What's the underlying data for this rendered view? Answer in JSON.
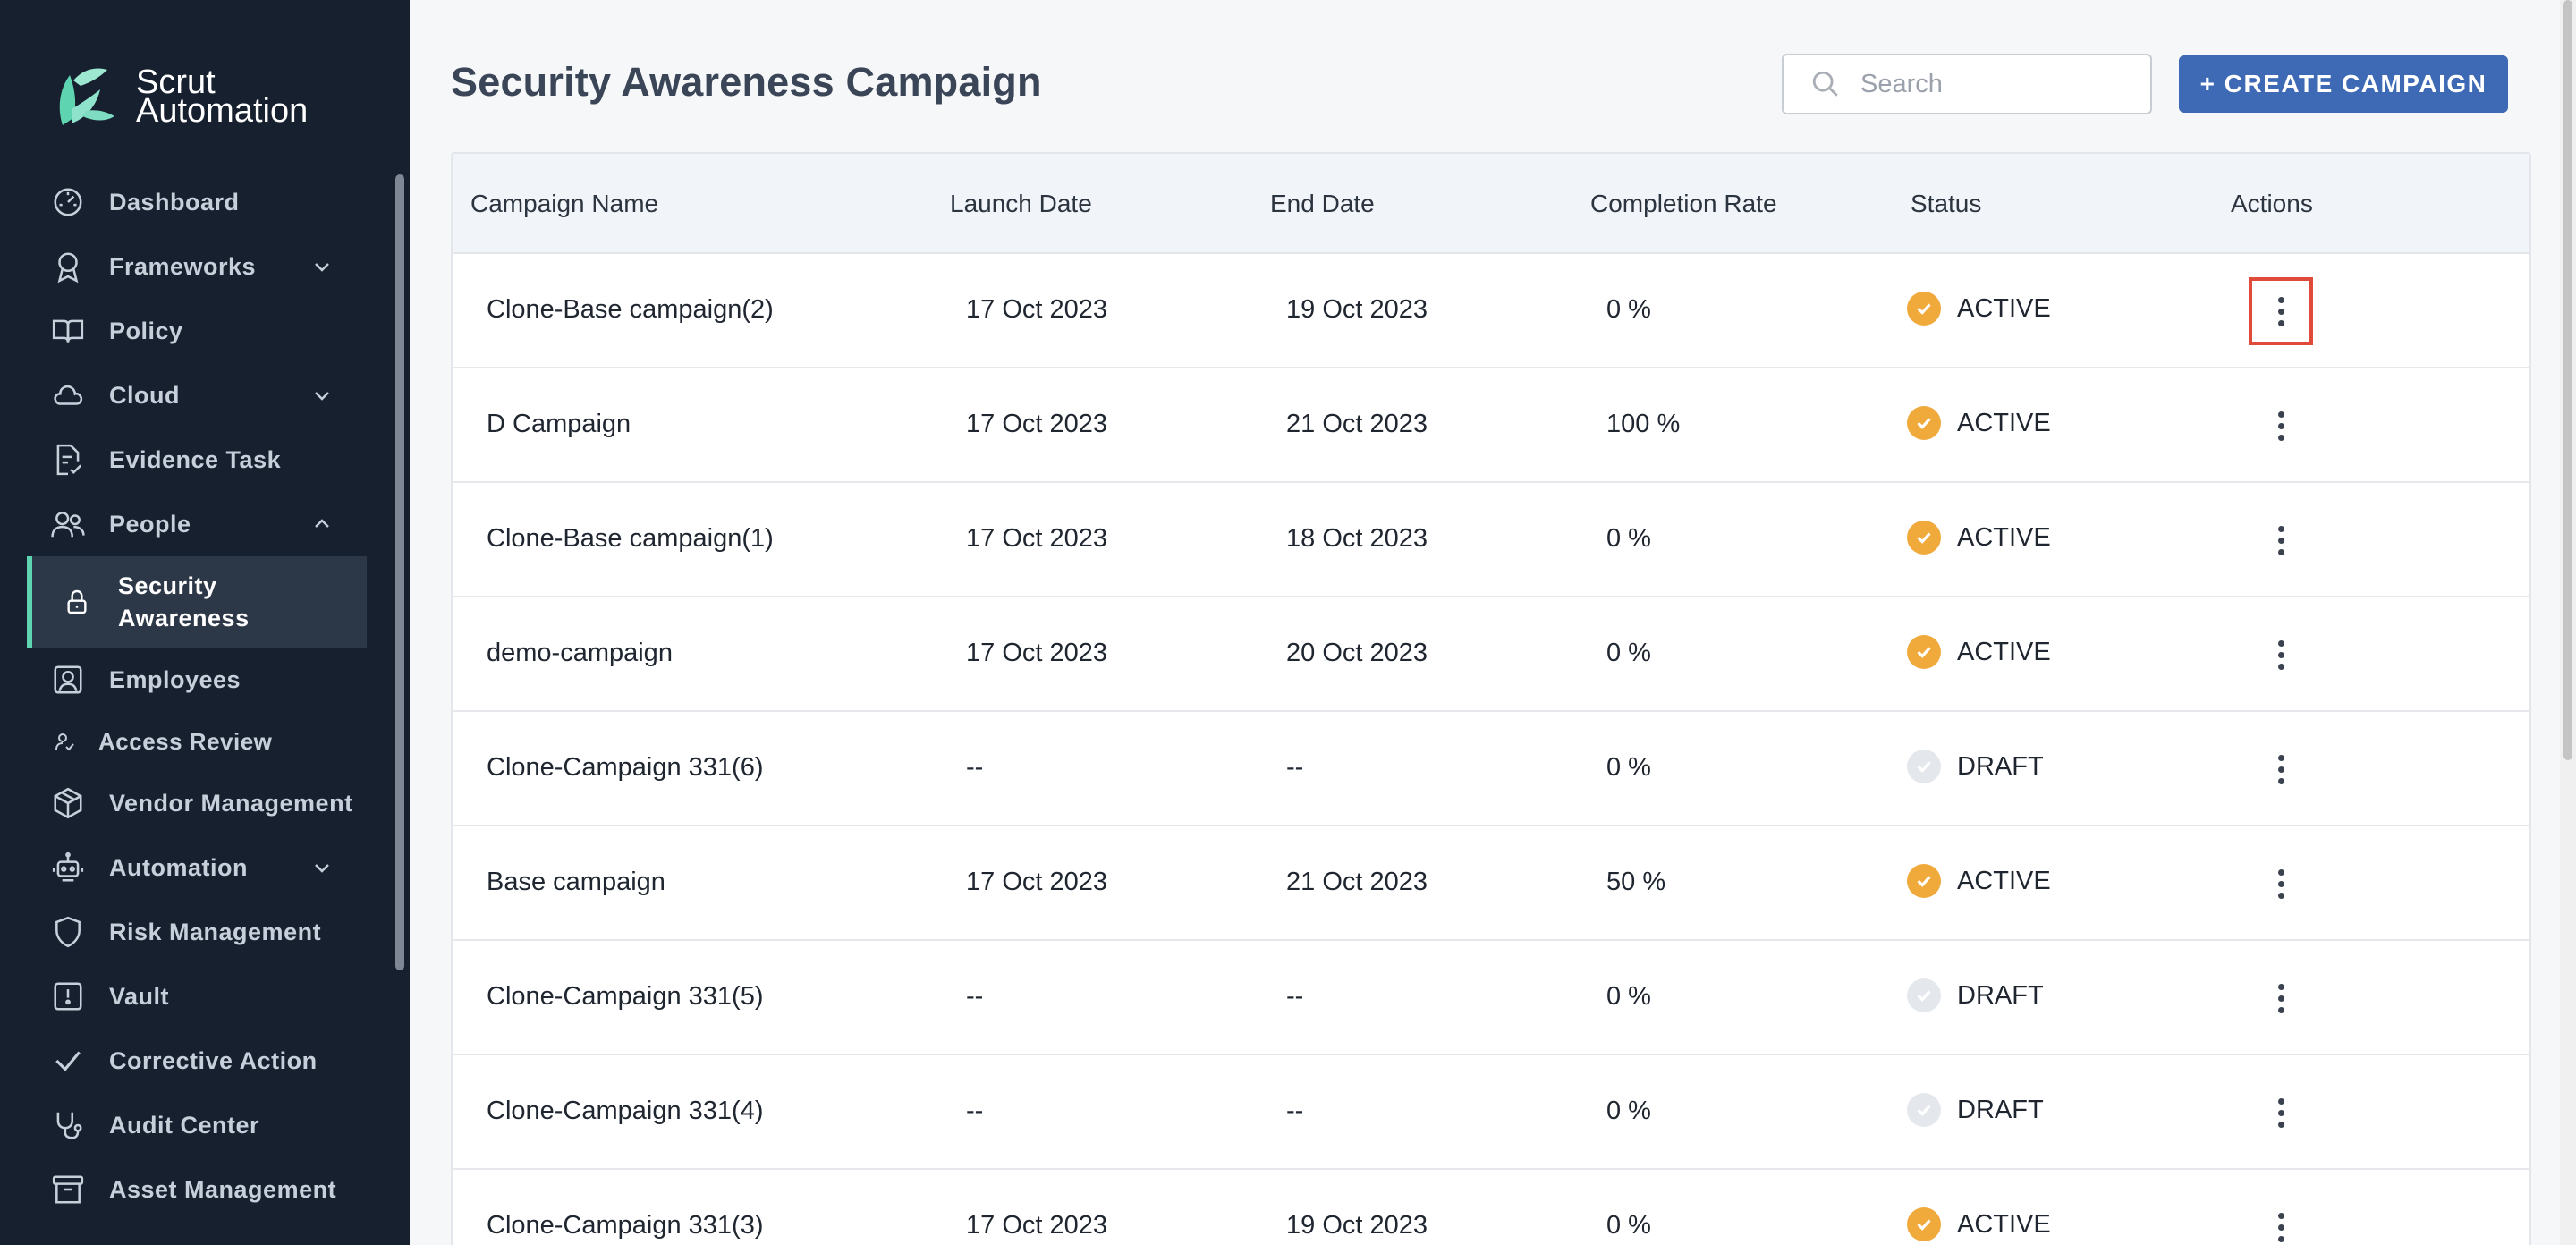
{
  "app": {
    "logo_line1": "Scrut",
    "logo_line2": "Automation"
  },
  "sidebar": {
    "items": [
      {
        "label": "Dashboard",
        "icon": "dashboard-icon"
      },
      {
        "label": "Frameworks",
        "icon": "award-icon",
        "expandable": "chevron-down"
      },
      {
        "label": "Policy",
        "icon": "book-icon"
      },
      {
        "label": "Cloud",
        "icon": "cloud-icon",
        "expandable": "chevron-down"
      },
      {
        "label": "Evidence Task",
        "icon": "document-check-icon"
      },
      {
        "label": "People",
        "icon": "people-icon",
        "expandable": "chevron-up"
      },
      {
        "label": "Security Awareness",
        "icon": "lock-icon",
        "active": true
      },
      {
        "label": "Employees",
        "icon": "employee-icon"
      },
      {
        "label": "Access Review",
        "icon": "access-review-icon"
      },
      {
        "label": "Vendor Management",
        "icon": "box-icon"
      },
      {
        "label": "Automation",
        "icon": "robot-icon",
        "expandable": "chevron-down"
      },
      {
        "label": "Risk Management",
        "icon": "shield-icon"
      },
      {
        "label": "Vault",
        "icon": "vault-icon"
      },
      {
        "label": "Corrective Action",
        "icon": "check-icon"
      },
      {
        "label": "Audit Center",
        "icon": "stethoscope-icon"
      },
      {
        "label": "Asset Management",
        "icon": "archive-icon"
      }
    ]
  },
  "header": {
    "title": "Security Awareness Campaign",
    "search_placeholder": "Search",
    "create_button": "+ CREATE CAMPAIGN"
  },
  "table": {
    "columns": [
      "Campaign Name",
      "Launch Date",
      "End Date",
      "Completion Rate",
      "Status",
      "Actions"
    ],
    "rows": [
      {
        "name": "Clone-Base campaign(2)",
        "launch": "17 Oct 2023",
        "end": "19 Oct 2023",
        "rate": "0 %",
        "status": "ACTIVE"
      },
      {
        "name": "D Campaign",
        "launch": "17 Oct 2023",
        "end": "21 Oct 2023",
        "rate": "100 %",
        "status": "ACTIVE"
      },
      {
        "name": "Clone-Base campaign(1)",
        "launch": "17 Oct 2023",
        "end": "18 Oct 2023",
        "rate": "0 %",
        "status": "ACTIVE"
      },
      {
        "name": "demo-campaign",
        "launch": "17 Oct 2023",
        "end": "20 Oct 2023",
        "rate": "0 %",
        "status": "ACTIVE"
      },
      {
        "name": "Clone-Campaign 331(6)",
        "launch": "--",
        "end": "--",
        "rate": "0 %",
        "status": "DRAFT"
      },
      {
        "name": "Base campaign",
        "launch": "17 Oct 2023",
        "end": "21 Oct 2023",
        "rate": "50 %",
        "status": "ACTIVE"
      },
      {
        "name": "Clone-Campaign 331(5)",
        "launch": "--",
        "end": "--",
        "rate": "0 %",
        "status": "DRAFT"
      },
      {
        "name": "Clone-Campaign 331(4)",
        "launch": "--",
        "end": "--",
        "rate": "0 %",
        "status": "DRAFT"
      },
      {
        "name": "Clone-Campaign 331(3)",
        "launch": "17 Oct 2023",
        "end": "19 Oct 2023",
        "rate": "0 %",
        "status": "ACTIVE"
      }
    ]
  },
  "colors": {
    "sidebar_bg": "#16202f",
    "accent": "#5fd4b1",
    "primary_button": "#3e6ab5",
    "active_status": "#f0a93b",
    "draft_status": "#e4e7ec",
    "highlight": "#e04a3a"
  }
}
